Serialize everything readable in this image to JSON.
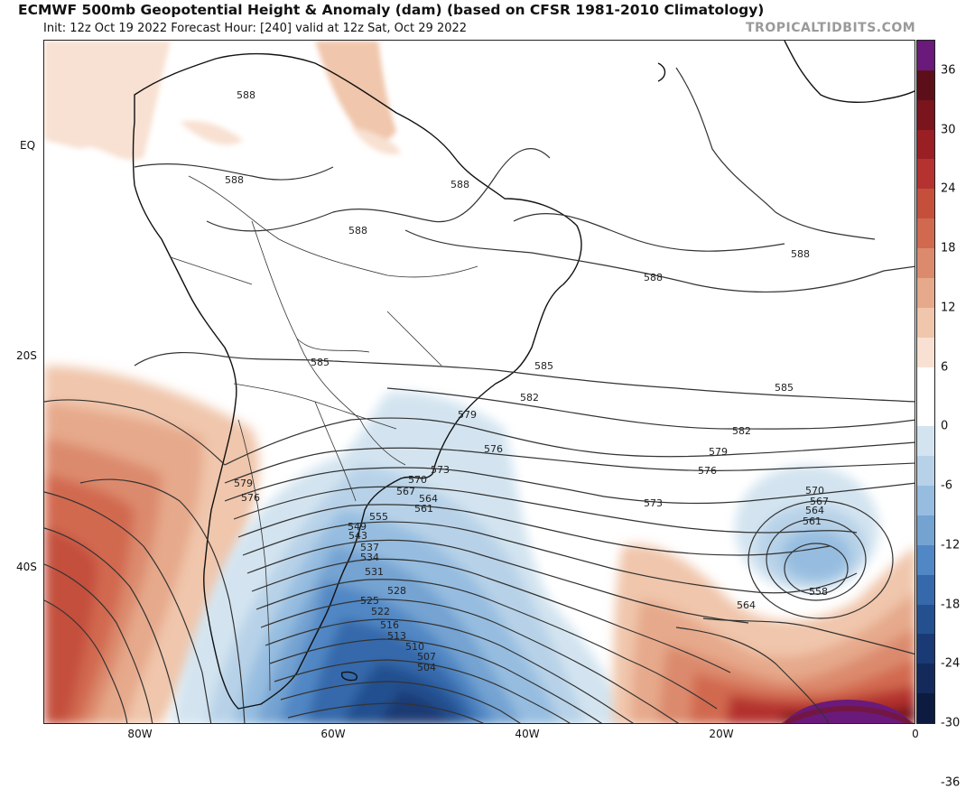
{
  "header": {
    "title": "ECMWF 500mb Geopotential Height & Anomaly (dam) (based on CFSR 1981-2010 Climatology)",
    "subtitle": "Init: 12z Oct 19 2022   Forecast Hour: [240]   valid at 12z Sat, Oct 29 2022",
    "brand": "TROPICALTIDBITS.COM"
  },
  "axes": {
    "lat_labels": [
      "EQ",
      "20S",
      "40S"
    ],
    "lon_labels": [
      "80W",
      "60W",
      "40W",
      "20W",
      "0"
    ]
  },
  "colorbar": {
    "ticks": [
      "36",
      "30",
      "24",
      "18",
      "12",
      "6",
      "0",
      "-6",
      "-12",
      "-18",
      "-24",
      "-30",
      "-36"
    ],
    "colors": [
      "#6a1a7a",
      "#5c0f19",
      "#7a141d",
      "#9a1f24",
      "#b4322f",
      "#c4503c",
      "#d1694f",
      "#dc8a6d",
      "#e6a98b",
      "#f0c6ac",
      "#f8e1d2",
      "#ffffff",
      "#ffffff",
      "#d3e4f0",
      "#b7d2e8",
      "#96bde0",
      "#74a3d2",
      "#5187c4",
      "#3669ab",
      "#24508f",
      "#1a3a75",
      "#142a5a",
      "#0c1b3f"
    ]
  },
  "contours": {
    "labels": [
      "588",
      "588",
      "588",
      "588",
      "588",
      "588",
      "585",
      "585",
      "585",
      "582",
      "582",
      "579",
      "579",
      "579",
      "576",
      "576",
      "576",
      "573",
      "573",
      "570",
      "570",
      "567",
      "567",
      "564",
      "564",
      "564",
      "561",
      "561",
      "558",
      "555",
      "549",
      "543",
      "537",
      "534",
      "531",
      "528",
      "525",
      "522",
      "516",
      "513",
      "510",
      "507",
      "504"
    ]
  }
}
